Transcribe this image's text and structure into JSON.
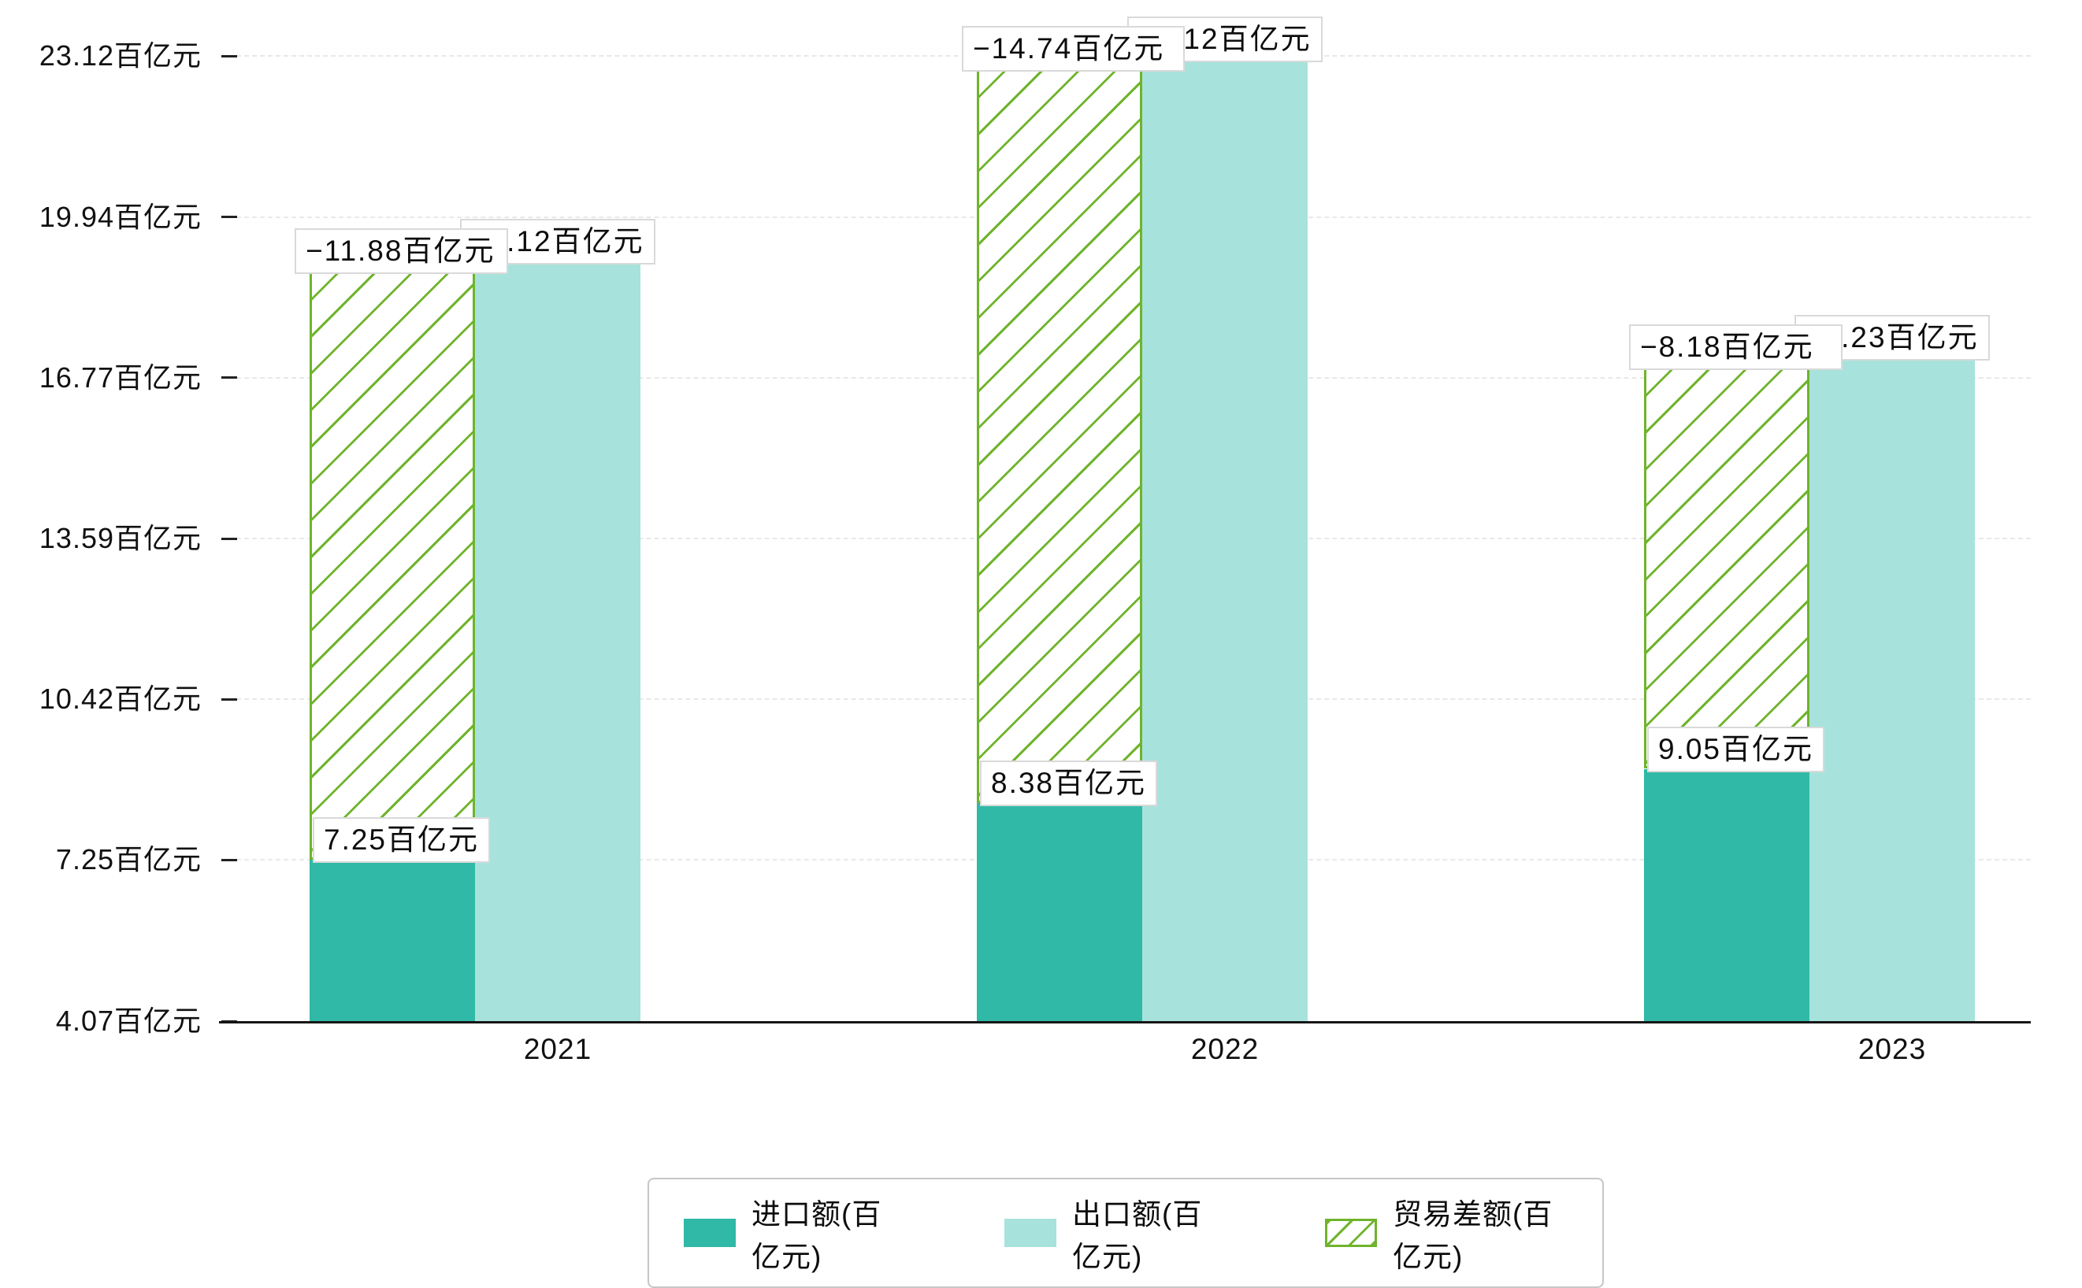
{
  "chart_data": {
    "type": "bar",
    "title": "",
    "categories": [
      "2021",
      "2022",
      "2023"
    ],
    "series": [
      {
        "name": "进口额(百亿元)",
        "values": [
          7.25,
          8.38,
          9.05
        ],
        "color": "#2fb9a6",
        "bar_labels": [
          "7.25百亿元",
          "8.38百亿元",
          "9.05百亿元"
        ]
      },
      {
        "name": "出口额(百亿元)",
        "values": [
          19.12,
          23.12,
          17.23
        ],
        "color": "#a7e3dc",
        "bar_labels": [
          "19.12百亿元",
          "23.12百亿元",
          "17.23百亿元"
        ]
      },
      {
        "name": "贸易差额(百亿元)",
        "values": [
          -11.88,
          -14.74,
          -8.18
        ],
        "color": "#6fb42c",
        "style": "white-bar-with-green-diagonal-hatch-and-outline",
        "span": "from-import-value-to-export-value",
        "bar_labels": [
          "−11.88百亿元",
          "−14.74百亿元",
          "−8.18百亿元"
        ]
      }
    ],
    "ylim": [
      4.07,
      23.12
    ],
    "yticks": {
      "values": [
        4.07,
        7.25,
        10.42,
        13.59,
        16.77,
        19.94,
        23.12
      ],
      "labels": [
        "4.07百亿元",
        "7.25百亿元",
        "10.42百亿元",
        "13.59百亿元",
        "16.77百亿元",
        "19.94百亿元",
        "23.12百亿元"
      ]
    },
    "unit": "百亿元",
    "grid": "horizontal-dashed",
    "legend_position": "bottom-center"
  },
  "legend": {
    "items": [
      {
        "label": "进口额(百亿元)",
        "swatch": "solid-teal"
      },
      {
        "label": "出口额(百亿元)",
        "swatch": "solid-light-cyan"
      },
      {
        "label": "贸易差额(百亿元)",
        "swatch": "green-hatched-outline"
      }
    ]
  }
}
